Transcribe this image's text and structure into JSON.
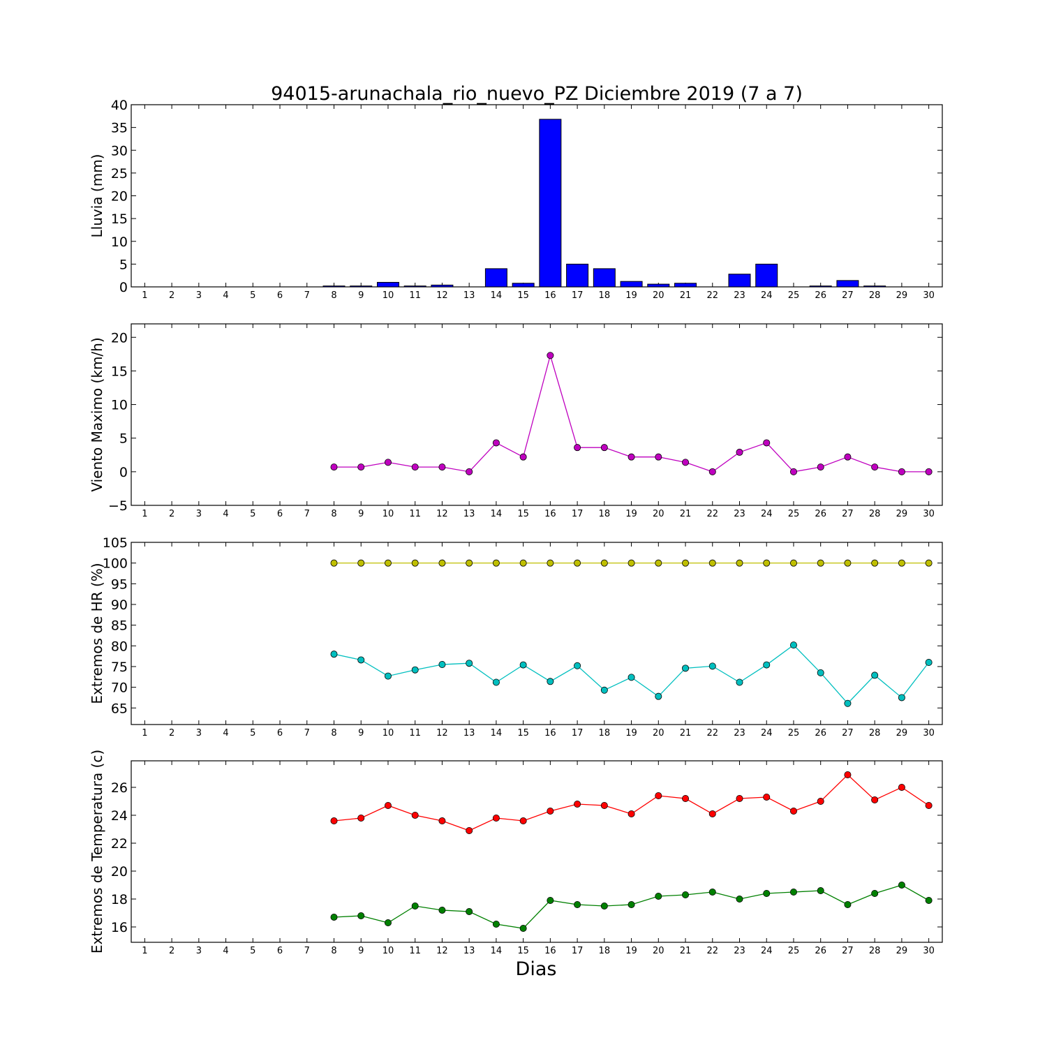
{
  "title": "94015-arunachala_rio_nuevo_PZ Diciembre 2019  (7 a 7)",
  "xlabel": "Dias",
  "chart_data": [
    {
      "type": "bar",
      "ylabel": "Lluvia (mm)",
      "ylim": [
        0,
        40
      ],
      "yticks": [
        0,
        5,
        10,
        15,
        20,
        25,
        30,
        35,
        40
      ],
      "x": [
        1,
        2,
        3,
        4,
        5,
        6,
        7,
        8,
        9,
        10,
        11,
        12,
        13,
        14,
        15,
        16,
        17,
        18,
        19,
        20,
        21,
        22,
        23,
        24,
        25,
        26,
        27,
        28,
        29,
        30
      ],
      "series": [
        {
          "color": "#0000ff",
          "values": [
            0,
            0,
            0,
            0,
            0,
            0,
            0,
            0.2,
            0.2,
            1.0,
            0.2,
            0.4,
            0,
            4.0,
            0.8,
            36.8,
            5.0,
            4.0,
            1.2,
            0.6,
            0.8,
            0,
            2.8,
            5.0,
            0,
            0.2,
            1.4,
            0.2,
            0,
            0
          ]
        }
      ]
    },
    {
      "type": "line",
      "ylabel": "Viento Maximo (km/h)",
      "ylim": [
        -5,
        22
      ],
      "yticks": [
        -5,
        0,
        5,
        10,
        15,
        20
      ],
      "x": [
        8,
        9,
        10,
        11,
        12,
        13,
        14,
        15,
        16,
        17,
        18,
        19,
        20,
        21,
        22,
        23,
        24,
        25,
        26,
        27,
        28,
        29,
        30
      ],
      "series": [
        {
          "color": "#bf00bf",
          "values": [
            0.7,
            0.7,
            1.4,
            0.7,
            0.7,
            0,
            4.3,
            2.2,
            17.3,
            3.6,
            3.6,
            2.2,
            2.2,
            1.4,
            0,
            2.9,
            4.3,
            0,
            0.7,
            2.2,
            0.7,
            0,
            0
          ]
        }
      ]
    },
    {
      "type": "line",
      "ylabel": "Extremos de HR (%)",
      "ylim": [
        61,
        105
      ],
      "yticks": [
        65,
        70,
        75,
        80,
        85,
        90,
        95,
        100,
        105
      ],
      "x": [
        8,
        9,
        10,
        11,
        12,
        13,
        14,
        15,
        16,
        17,
        18,
        19,
        20,
        21,
        22,
        23,
        24,
        25,
        26,
        27,
        28,
        29,
        30
      ],
      "series": [
        {
          "color": "#bfbf00",
          "values": [
            100,
            100,
            100,
            100,
            100,
            100,
            100,
            100,
            100,
            100,
            100,
            100,
            100,
            100,
            100,
            100,
            100,
            100,
            100,
            100,
            100,
            100,
            100
          ]
        },
        {
          "color": "#00bfbf",
          "values": [
            78,
            76.6,
            72.7,
            74.2,
            75.5,
            75.8,
            71.2,
            75.4,
            71.4,
            75.2,
            69.3,
            72.4,
            67.8,
            74.6,
            75.1,
            71.2,
            75.4,
            80.2,
            73.5,
            66.1,
            72.9,
            67.5,
            76
          ]
        }
      ]
    },
    {
      "type": "line",
      "ylabel": "Extremos de Temperatura (c)",
      "ylim": [
        14.9,
        27.9
      ],
      "yticks": [
        16,
        18,
        20,
        22,
        24,
        26
      ],
      "x": [
        8,
        9,
        10,
        11,
        12,
        13,
        14,
        15,
        16,
        17,
        18,
        19,
        20,
        21,
        22,
        23,
        24,
        25,
        26,
        27,
        28,
        29,
        30
      ],
      "series": [
        {
          "color": "#ff0000",
          "values": [
            23.6,
            23.8,
            24.7,
            24.0,
            23.6,
            22.9,
            23.8,
            23.6,
            24.3,
            24.8,
            24.7,
            24.1,
            25.4,
            25.2,
            24.1,
            25.2,
            25.3,
            24.3,
            25.0,
            26.9,
            25.1,
            26.0,
            24.7
          ]
        },
        {
          "color": "#008000",
          "values": [
            16.7,
            16.8,
            16.3,
            17.5,
            17.2,
            17.1,
            16.2,
            15.9,
            17.9,
            17.6,
            17.5,
            17.6,
            18.2,
            18.3,
            18.5,
            18.0,
            18.4,
            18.5,
            18.6,
            17.6,
            18.4,
            19.0,
            17.9
          ]
        }
      ]
    }
  ]
}
